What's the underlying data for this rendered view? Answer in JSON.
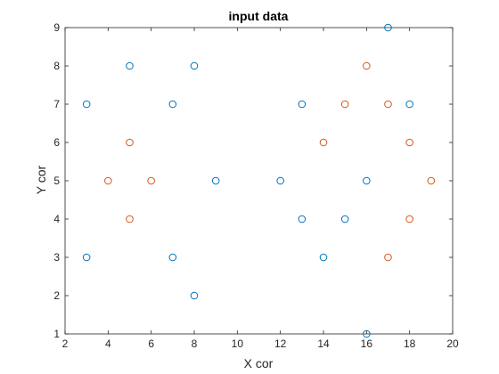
{
  "chart_data": {
    "type": "scatter",
    "title": "input data",
    "xlabel": "X cor",
    "ylabel": "Y cor",
    "xlim": [
      2,
      20
    ],
    "ylim": [
      1,
      9
    ],
    "xticks": [
      "2",
      "4",
      "6",
      "8",
      "10",
      "12",
      "14",
      "16",
      "18",
      "20"
    ],
    "yticks": [
      "1",
      "2",
      "3",
      "4",
      "5",
      "6",
      "7",
      "8",
      "9"
    ],
    "grid": false,
    "legend": "none",
    "marker": "open-circle",
    "series": [
      {
        "color": "#0072BD",
        "points": [
          [
            3,
            7
          ],
          [
            3,
            3
          ],
          [
            5,
            8
          ],
          [
            7,
            7
          ],
          [
            7,
            3
          ],
          [
            8,
            8
          ],
          [
            8,
            2
          ],
          [
            9,
            5
          ],
          [
            12,
            5
          ],
          [
            13,
            7
          ],
          [
            13,
            4
          ],
          [
            14,
            3
          ],
          [
            15,
            4
          ],
          [
            16,
            5
          ],
          [
            16,
            1
          ],
          [
            17,
            9
          ],
          [
            18,
            7
          ]
        ]
      },
      {
        "color": "#D95319",
        "points": [
          [
            4,
            5
          ],
          [
            5,
            6
          ],
          [
            5,
            4
          ],
          [
            6,
            5
          ],
          [
            14,
            6
          ],
          [
            15,
            7
          ],
          [
            16,
            8
          ],
          [
            17,
            7
          ],
          [
            17,
            3
          ],
          [
            18,
            6
          ],
          [
            18,
            4
          ],
          [
            19,
            5
          ]
        ]
      }
    ]
  }
}
